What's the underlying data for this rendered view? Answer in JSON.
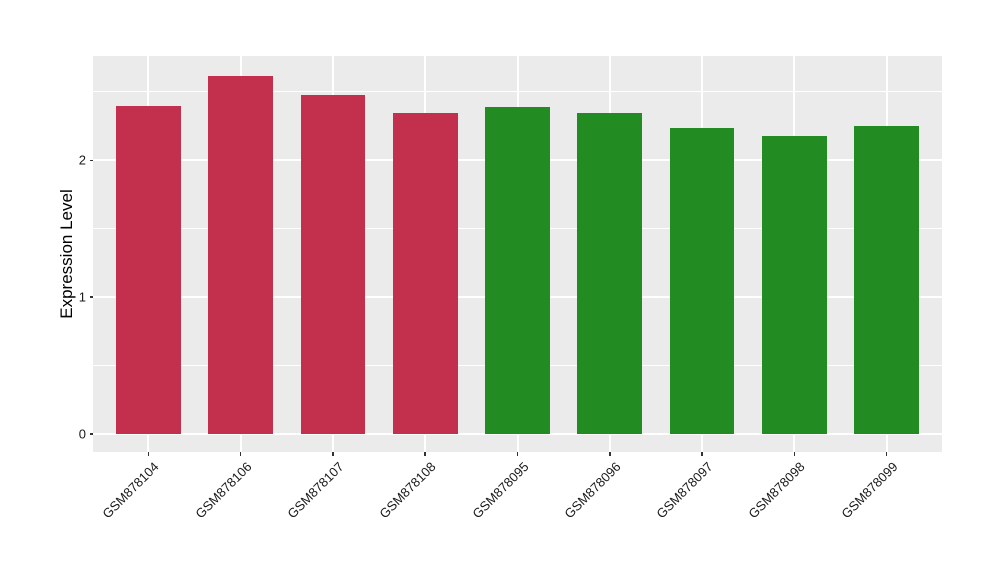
{
  "chart_data": {
    "type": "bar",
    "title": "",
    "xlabel": "",
    "ylabel": "Expression Level",
    "categories": [
      "GSM878104",
      "GSM878106",
      "GSM878107",
      "GSM878108",
      "GSM878095",
      "GSM878096",
      "GSM878097",
      "GSM878098",
      "GSM878099"
    ],
    "values": [
      2.4,
      2.62,
      2.48,
      2.35,
      2.39,
      2.35,
      2.24,
      2.18,
      2.25
    ],
    "bar_colors": [
      "#C3304E",
      "#C3304E",
      "#C3304E",
      "#C3304E",
      "#228B22",
      "#228B22",
      "#228B22",
      "#228B22",
      "#228B22"
    ],
    "group_colors": {
      "red_group": "#C3304E",
      "green_group": "#228B22"
    },
    "yticks_major": [
      0,
      1,
      2
    ],
    "ytick_labels": [
      "0",
      "1",
      "2"
    ],
    "yticks_minor": [
      0.5,
      1.5,
      2.5
    ],
    "ylim": [
      -0.131,
      2.763
    ],
    "grid": true,
    "legend_position": "none",
    "panel_bg": "#EBEBEB",
    "grid_color": "#FFFFFF",
    "tick_mark_color": "#333333",
    "axis_text_color": "#1a1a1a"
  }
}
